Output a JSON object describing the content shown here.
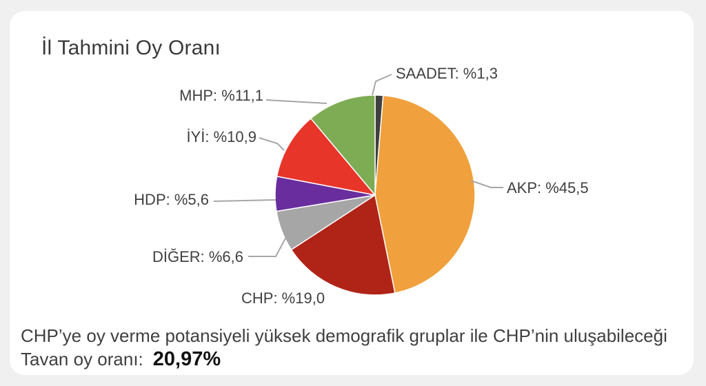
{
  "chart_data": {
    "type": "pie",
    "title": "İl Tahmini Oy Oranı",
    "slices": [
      {
        "label": "SAADET: %1,3",
        "value": 1.3,
        "color": "#404040"
      },
      {
        "label": "AKP: %45,5",
        "value": 45.5,
        "color": "#f0a03c"
      },
      {
        "label": "CHP: %19,0",
        "value": 19.0,
        "color": "#b02418"
      },
      {
        "label": "DİĞER: %6,6",
        "value": 6.6,
        "color": "#a6a6a6"
      },
      {
        "label": "HDP: %5,6",
        "value": 5.6,
        "color": "#6a2d9e"
      },
      {
        "label": "İYİ: %10,9",
        "value": 10.9,
        "color": "#e8352a"
      },
      {
        "label": "MHP: %11,1",
        "value": 11.1,
        "color": "#7dac55"
      }
    ]
  },
  "footer": {
    "text": "CHP’ye oy verme potansiyeli yüksek demografik gruplar ile CHP’nin uluşabileceği Tavan oy oranı:",
    "highlight": "20,97%"
  }
}
